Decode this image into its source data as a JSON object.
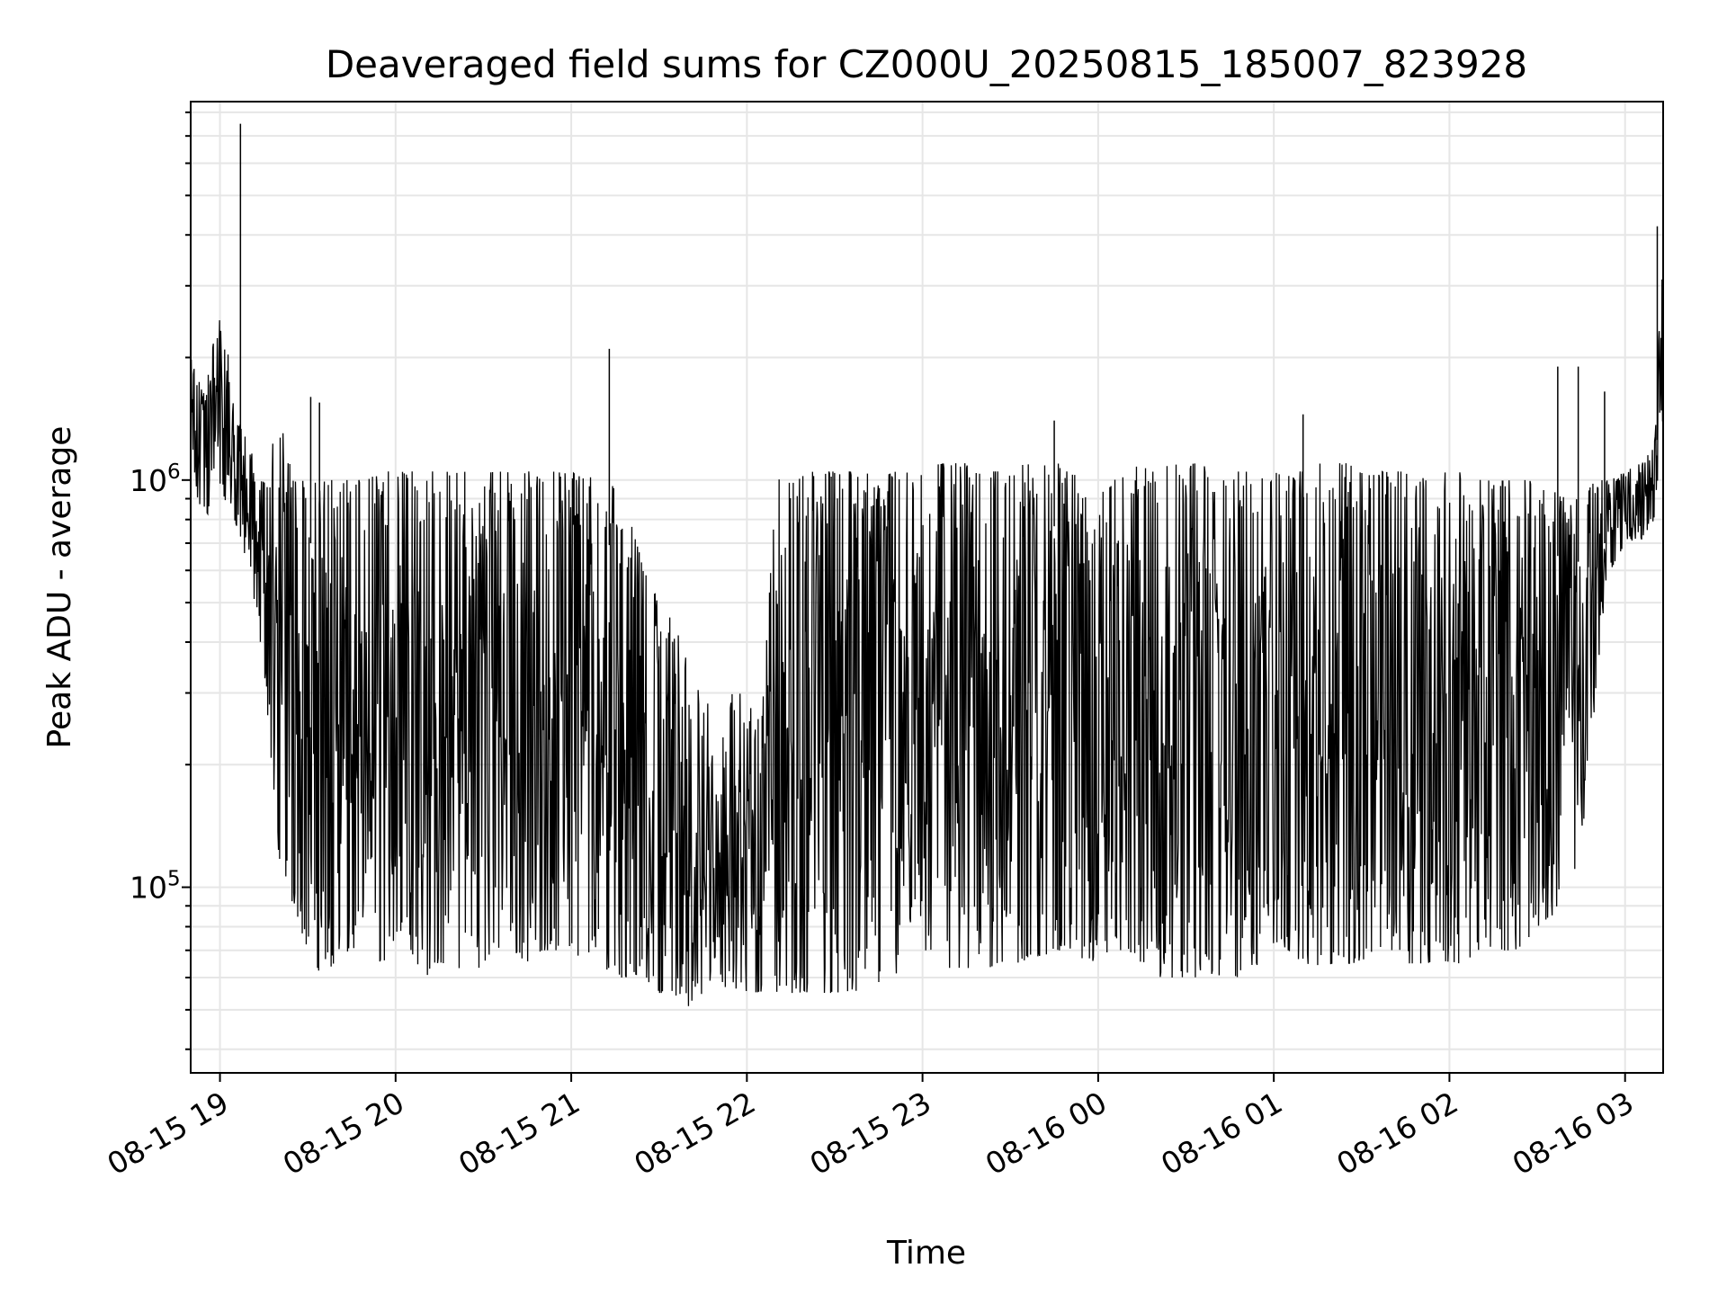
{
  "chart_data": {
    "type": "line",
    "title": "Deaveraged field sums for CZ000U_20250815_185007_823928",
    "xlabel": "Time",
    "ylabel": "Peak ADU - average",
    "x_range": [
      "2025-08-15 18:50",
      "2025-08-16 03:13"
    ],
    "ylim": [
      35000,
      8500000
    ],
    "y_scale": "log",
    "grid": true,
    "legend": "none",
    "line_color": "#000000",
    "x_tick_labels": [
      {
        "label": "08-15 19",
        "time": "2025-08-15 19:00"
      },
      {
        "label": "08-15 20",
        "time": "2025-08-15 20:00"
      },
      {
        "label": "08-15 21",
        "time": "2025-08-15 21:00"
      },
      {
        "label": "08-15 22",
        "time": "2025-08-15 22:00"
      },
      {
        "label": "08-15 23",
        "time": "2025-08-15 23:00"
      },
      {
        "label": "08-16 00",
        "time": "2025-08-16 00:00"
      },
      {
        "label": "08-16 01",
        "time": "2025-08-16 01:00"
      },
      {
        "label": "08-16 02",
        "time": "2025-08-16 02:00"
      },
      {
        "label": "08-16 03",
        "time": "2025-08-16 03:00"
      }
    ],
    "y_tick_labels": [
      {
        "base": "10",
        "exp": "5",
        "value": 100000
      },
      {
        "base": "10",
        "exp": "6",
        "value": 1000000
      }
    ],
    "series": [
      {
        "x": [
          "2025-08-15 18:50",
          "2025-08-15 18:55",
          "2025-08-15 19:00",
          "2025-08-15 19:05",
          "2025-08-15 19:10",
          "2025-08-15 19:15",
          "2025-08-15 19:20",
          "2025-08-15 19:25",
          "2025-08-15 19:30",
          "2025-08-15 19:35",
          "2025-08-15 19:40",
          "2025-08-15 19:45",
          "2025-08-15 19:50",
          "2025-08-15 19:55",
          "2025-08-15 20:00",
          "2025-08-15 20:05",
          "2025-08-15 20:10",
          "2025-08-15 20:15",
          "2025-08-15 20:20",
          "2025-08-15 20:25",
          "2025-08-15 20:30",
          "2025-08-15 20:35",
          "2025-08-15 20:40",
          "2025-08-15 20:45",
          "2025-08-15 20:50",
          "2025-08-15 20:55",
          "2025-08-15 21:00",
          "2025-08-15 21:05",
          "2025-08-15 21:10",
          "2025-08-15 21:15",
          "2025-08-15 21:20",
          "2025-08-15 21:25",
          "2025-08-15 21:30",
          "2025-08-15 21:35",
          "2025-08-15 21:40",
          "2025-08-15 21:45",
          "2025-08-15 21:50",
          "2025-08-15 21:55",
          "2025-08-15 22:00",
          "2025-08-15 22:05",
          "2025-08-15 22:10",
          "2025-08-15 22:15",
          "2025-08-15 22:20",
          "2025-08-15 22:25",
          "2025-08-15 22:30",
          "2025-08-15 22:35",
          "2025-08-15 22:40",
          "2025-08-15 22:45",
          "2025-08-15 22:50",
          "2025-08-15 22:55",
          "2025-08-15 23:00",
          "2025-08-15 23:05",
          "2025-08-15 23:10",
          "2025-08-15 23:15",
          "2025-08-15 23:20",
          "2025-08-15 23:25",
          "2025-08-15 23:30",
          "2025-08-15 23:35",
          "2025-08-15 23:40",
          "2025-08-15 23:45",
          "2025-08-15 23:50",
          "2025-08-15 23:55",
          "2025-08-16 00:00",
          "2025-08-16 00:05",
          "2025-08-16 00:10",
          "2025-08-16 00:15",
          "2025-08-16 00:20",
          "2025-08-16 00:25",
          "2025-08-16 00:30",
          "2025-08-16 00:35",
          "2025-08-16 00:40",
          "2025-08-16 00:45",
          "2025-08-16 00:50",
          "2025-08-16 00:55",
          "2025-08-16 01:00",
          "2025-08-16 01:05",
          "2025-08-16 01:10",
          "2025-08-16 01:15",
          "2025-08-16 01:20",
          "2025-08-16 01:25",
          "2025-08-16 01:30",
          "2025-08-16 01:35",
          "2025-08-16 01:40",
          "2025-08-16 01:45",
          "2025-08-16 01:50",
          "2025-08-16 01:55",
          "2025-08-16 02:00",
          "2025-08-16 02:05",
          "2025-08-16 02:10",
          "2025-08-16 02:15",
          "2025-08-16 02:20",
          "2025-08-16 02:25",
          "2025-08-16 02:30",
          "2025-08-16 02:35",
          "2025-08-16 02:40",
          "2025-08-16 02:45",
          "2025-08-16 02:50",
          "2025-08-16 02:55",
          "2025-08-16 03:00",
          "2025-08-16 03:05",
          "2025-08-16 03:10",
          "2025-08-16 03:13"
        ],
        "min": [
          900000,
          800000,
          950000,
          800000,
          600000,
          350000,
          120000,
          90000,
          70000,
          60000,
          65000,
          70000,
          70000,
          65000,
          70000,
          70000,
          60000,
          65000,
          65000,
          60000,
          65000,
          70000,
          70000,
          65000,
          70000,
          70000,
          70000,
          65000,
          65000,
          60000,
          60000,
          60000,
          55000,
          55000,
          50000,
          55000,
          58000,
          55000,
          55000,
          55000,
          55000,
          55000,
          55000,
          55000,
          55000,
          55000,
          55000,
          58000,
          60000,
          65000,
          70000,
          65000,
          55000,
          60000,
          60000,
          65000,
          65000,
          65000,
          65000,
          70000,
          70000,
          65000,
          65000,
          70000,
          70000,
          65000,
          60000,
          60000,
          60000,
          60000,
          55000,
          60000,
          60000,
          65000,
          70000,
          70000,
          65000,
          60000,
          65000,
          65000,
          65000,
          70000,
          70000,
          65000,
          65000,
          65000,
          65000,
          65000,
          70000,
          70000,
          70000,
          70000,
          80000,
          85000,
          100000,
          120000,
          300000,
          600000,
          700000,
          700000,
          800000,
          1400000
        ],
        "max": [
          2000000,
          1600000,
          3000000,
          1500000,
          1200000,
          1000000,
          1500000,
          1000000,
          1000000,
          1000000,
          1000000,
          1000000,
          1000000,
          1050000,
          1050000,
          1050000,
          1050000,
          1050000,
          1050000,
          1050000,
          1050000,
          1050000,
          1050000,
          1050000,
          1050000,
          1050000,
          1050000,
          1000000,
          1050000,
          950000,
          800000,
          600000,
          500000,
          450000,
          350000,
          300000,
          250000,
          300000,
          300000,
          250000,
          1000000,
          1050000,
          1050000,
          1050000,
          1050000,
          1050000,
          1050000,
          1050000,
          1050000,
          1050000,
          1050000,
          1100000,
          1100000,
          1100000,
          1050000,
          1050000,
          1050000,
          1100000,
          1100000,
          1100000,
          1100000,
          1100000,
          1050000,
          1000000,
          1050000,
          1100000,
          1050000,
          1100000,
          1100000,
          1100000,
          1050000,
          1050000,
          1050000,
          1050000,
          1050000,
          1050000,
          1050000,
          1100000,
          1100000,
          1100000,
          1050000,
          1050000,
          1050000,
          1050000,
          1050000,
          1050000,
          1050000,
          1050000,
          1000000,
          1000000,
          1000000,
          1000000,
          1000000,
          950000,
          900000,
          900000,
          1000000,
          1000000,
          1050000,
          1100000,
          1200000,
          4000000
        ]
      }
    ],
    "spikes": [
      {
        "x": "2025-08-15 19:07",
        "y": 7500000
      },
      {
        "x": "2025-08-15 21:13",
        "y": 2100000
      },
      {
        "x": "2025-08-16 02:37",
        "y": 1900000
      },
      {
        "x": "2025-08-16 02:44",
        "y": 1900000
      },
      {
        "x": "2025-08-16 03:11",
        "y": 4200000
      },
      {
        "x": "2025-08-15 19:31",
        "y": 1600000
      },
      {
        "x": "2025-08-15 19:34",
        "y": 1550000
      },
      {
        "x": "2025-08-15 23:45",
        "y": 1400000
      },
      {
        "x": "2025-08-16 01:10",
        "y": 1450000
      },
      {
        "x": "2025-08-16 02:53",
        "y": 1650000
      }
    ]
  }
}
